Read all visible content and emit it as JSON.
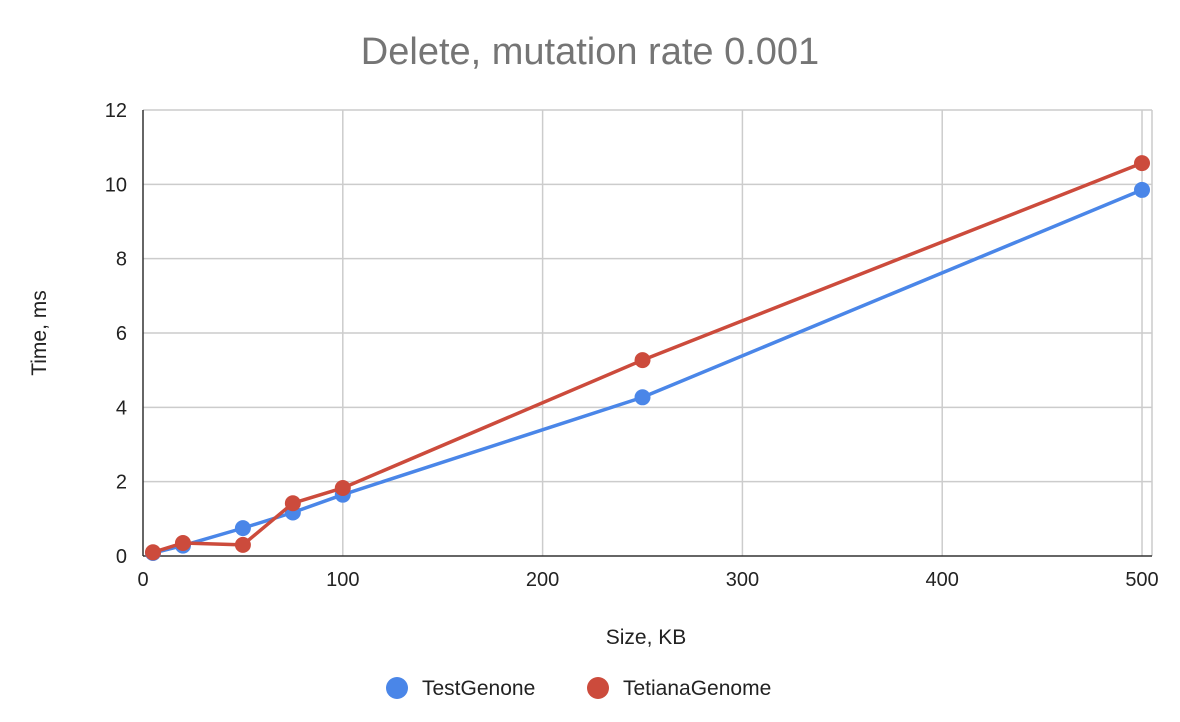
{
  "chart_data": {
    "type": "line",
    "title": "Delete, mutation rate 0.001",
    "xlabel": "Size, KB",
    "ylabel": "Time, ms",
    "xlim": [
      0,
      505
    ],
    "ylim": [
      0,
      12
    ],
    "x_ticks": [
      0,
      100,
      200,
      300,
      400,
      500
    ],
    "y_ticks": [
      0,
      2,
      4,
      6,
      8,
      10,
      12
    ],
    "grid": true,
    "legend_position": "bottom",
    "x": [
      5,
      20,
      50,
      75,
      100,
      250,
      500
    ],
    "series": [
      {
        "name": "TestGenone",
        "color": "#4a86e8",
        "values": [
          0.08,
          0.28,
          0.75,
          1.17,
          1.65,
          4.27,
          9.85
        ]
      },
      {
        "name": "TetianaGenome",
        "color": "#cc4b3c",
        "values": [
          0.1,
          0.35,
          0.3,
          1.42,
          1.83,
          5.27,
          10.57
        ]
      }
    ]
  }
}
